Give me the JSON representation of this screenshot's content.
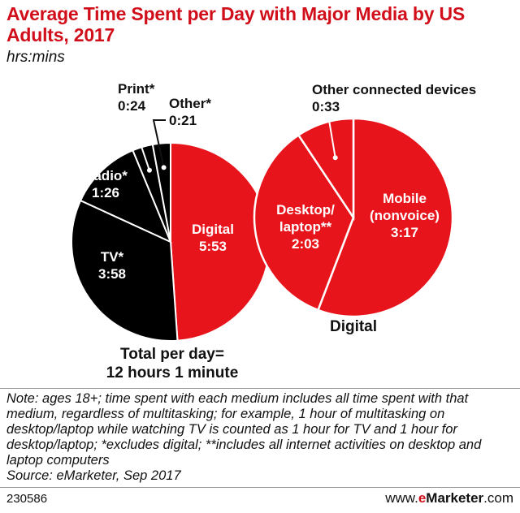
{
  "title": "Average Time Spent per Day with Major Media by US Adults, 2017",
  "subtitle": "hrs:mins",
  "chart_data": [
    {
      "type": "pie",
      "name": "Total",
      "unit": "hrs:mins",
      "slices": [
        {
          "label": "Digital",
          "value_text": "5:53",
          "minutes": 353,
          "color": "#e8141c"
        },
        {
          "label": "TV*",
          "value_text": "3:58",
          "minutes": 238,
          "color": "#000000"
        },
        {
          "label": "Radio*",
          "value_text": "1:26",
          "minutes": 86,
          "color": "#000000"
        },
        {
          "label": "Print*",
          "value_text": "0:24",
          "minutes": 24,
          "color": "#000000"
        },
        {
          "label": "Other*",
          "value_text": "0:21",
          "minutes": 21,
          "color": "#000000"
        }
      ],
      "total_label": "Total per day=",
      "total_value": "12 hours 1 minute"
    },
    {
      "type": "pie",
      "name": "Digital",
      "unit": "hrs:mins",
      "slices": [
        {
          "label": "Mobile (nonvoice)",
          "label_lines": [
            "Mobile",
            "(nonvoice)"
          ],
          "value_text": "3:17",
          "minutes": 197,
          "color": "#e8141c"
        },
        {
          "label": "Desktop/ laptop**",
          "label_lines": [
            "Desktop/",
            "laptop**"
          ],
          "value_text": "2:03",
          "minutes": 123,
          "color": "#e8141c"
        },
        {
          "label": "Other connected devices",
          "value_text": "0:33",
          "minutes": 33,
          "color": "#e8141c"
        }
      ],
      "caption": "Digital"
    }
  ],
  "footer": {
    "note": "Note: ages 18+; time spent with each medium includes all time spent with that medium, regardless of multitasking; for example, 1 hour of multitasking on desktop/laptop while watching TV is counted as 1 hour for TV and 1 hour for desktop/laptop; *excludes digital; **includes all internet activities on desktop and laptop computers",
    "source": "Source: eMarketer, Sep 2017",
    "chart_id": "230586",
    "brand_prefix": "www.",
    "brand_e": "e",
    "brand_rest": "Marketer",
    "brand_suffix": ".com"
  }
}
